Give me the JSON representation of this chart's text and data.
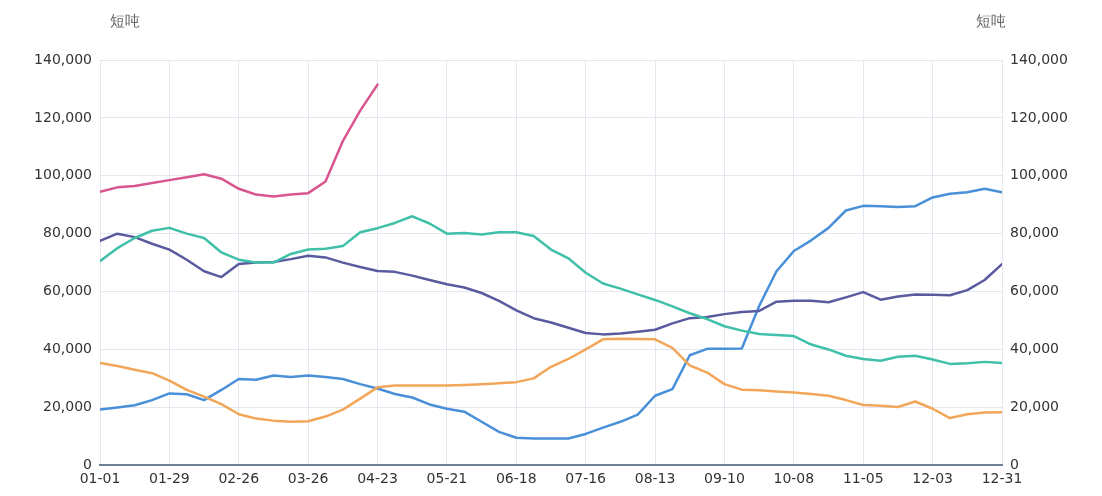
{
  "chart_data": {
    "type": "line",
    "ylabel": "短吨",
    "y2label": "短吨",
    "x": [
      "--01-01",
      "--01-08",
      "--01-15",
      "--01-22",
      "--01-29",
      "--02-05",
      "--02-12",
      "--02-19",
      "--02-26",
      "--03-05",
      "--03-12",
      "--03-19",
      "--03-26",
      "--04-02",
      "--04-09",
      "--04-16",
      "--04-23",
      "--04-30",
      "--05-07",
      "--05-14",
      "--05-21",
      "--05-28",
      "--06-04",
      "--06-11",
      "--06-18",
      "--06-25",
      "--07-02",
      "--07-09",
      "--07-16",
      "--07-23",
      "--07-30",
      "--08-06",
      "--08-13",
      "--08-20",
      "--08-27",
      "--09-03",
      "--09-10",
      "--09-17",
      "--09-24",
      "--10-01",
      "--10-08",
      "--10-15",
      "--10-22",
      "--10-29",
      "--11-05",
      "--11-12",
      "--11-19",
      "--11-26",
      "--12-03",
      "--12-10",
      "--12-17",
      "--12-24",
      "--12-31"
    ],
    "xlim": [
      "--01-01",
      "--12-31"
    ],
    "xticks": [
      {
        "value": "--01-01",
        "label": "01-01"
      },
      {
        "value": "--01-29",
        "label": "01-29"
      },
      {
        "value": "--02-26",
        "label": "02-26"
      },
      {
        "value": "--03-26",
        "label": "03-26"
      },
      {
        "value": "--04-23",
        "label": "04-23"
      },
      {
        "value": "--05-21",
        "label": "05-21"
      },
      {
        "value": "--06-18",
        "label": "06-18"
      },
      {
        "value": "--07-16",
        "label": "07-16"
      },
      {
        "value": "--08-13",
        "label": "08-13"
      },
      {
        "value": "--09-10",
        "label": "09-10"
      },
      {
        "value": "--10-08",
        "label": "10-08"
      },
      {
        "value": "--11-05",
        "label": "11-05"
      },
      {
        "value": "--12-03",
        "label": "12-03"
      },
      {
        "value": "--12-31",
        "label": "12-31"
      }
    ],
    "ylim": [
      0,
      140000
    ],
    "yticks": [
      0,
      {
        "value": 20000,
        "label": "20,000"
      },
      {
        "value": 40000,
        "label": "40,000"
      },
      {
        "value": 60000,
        "label": "60,000"
      },
      {
        "value": 80000,
        "label": "80,000"
      },
      {
        "value": 100000,
        "label": "100,000"
      },
      {
        "value": 120000,
        "label": "120,000"
      },
      {
        "value": 140000,
        "label": "140,000"
      }
    ],
    "y2lim": [
      0,
      140000
    ],
    "y2ticks": [
      0,
      {
        "value": 20000,
        "label": "20,000"
      },
      {
        "value": 40000,
        "label": "40,000"
      },
      {
        "value": 60000,
        "label": "60,000"
      },
      {
        "value": 80000,
        "label": "80,000"
      },
      {
        "value": 100000,
        "label": "100,000"
      },
      {
        "value": 120000,
        "label": "120,000"
      },
      {
        "value": 140000,
        "label": "140,000"
      }
    ],
    "grid": true,
    "legend": false,
    "marker": "none",
    "line_style": "solid",
    "series": [
      {
        "color": "#d9558f",
        "x": [
          "--01-01",
          "--01-08",
          "--01-15",
          "--01-22",
          "--01-29",
          "--02-05",
          "--02-12",
          "--02-19",
          "--02-26",
          "--03-05",
          "--03-12",
          "--03-19",
          "--03-26",
          "--04-02",
          "--04-09",
          "--04-16",
          "--04-23"
        ],
        "values": [
          94500,
          96000,
          96500,
          97500,
          98500,
          99500,
          100500,
          99000,
          95500,
          93500,
          92800,
          93500,
          94000,
          98000,
          112000,
          122500,
          131500
        ]
      },
      {
        "color": "#40c0a8",
        "values": [
          70500,
          75000,
          78500,
          81000,
          82000,
          80000,
          78500,
          73500,
          71000,
          70000,
          70000,
          73000,
          74500,
          74800,
          75700,
          80500,
          81900,
          83700,
          86000,
          83500,
          80000,
          80200,
          79700,
          80500,
          80500,
          79200,
          74500,
          71500,
          66500,
          62800,
          61000,
          59000,
          57100,
          54900,
          52500,
          50500,
          48000,
          46500,
          45300,
          45000,
          44600,
          41700,
          40000,
          37800,
          36700,
          36100,
          37500,
          37800,
          36500,
          35000,
          35200,
          35700,
          35300
        ]
      },
      {
        "color": "#5a5b9f",
        "values": [
          77500,
          80000,
          78800,
          76500,
          74500,
          71000,
          67000,
          65000,
          69500,
          70000,
          70200,
          71200,
          72400,
          71800,
          70000,
          68500,
          67100,
          66800,
          65500,
          64000,
          62500,
          61400,
          59500,
          56800,
          53500,
          50800,
          49300,
          47500,
          45700,
          45200,
          45500,
          46100,
          46800,
          49000,
          50800,
          51200,
          52200,
          52900,
          53300,
          56500,
          56800,
          56800,
          56300,
          58000,
          59800,
          57200,
          58300,
          59000,
          58900,
          58700,
          60500,
          64000,
          69500
        ]
      },
      {
        "color": "#f2a65a",
        "values": [
          35300,
          34300,
          33000,
          31800,
          29200,
          26000,
          23700,
          21100,
          17600,
          16100,
          15400,
          15000,
          15200,
          16800,
          19200,
          23000,
          26900,
          27500,
          27500,
          27500,
          27500,
          27700,
          28000,
          28300,
          28700,
          30000,
          34000,
          36700,
          40000,
          43500,
          43700,
          43600,
          43500,
          40500,
          34500,
          32000,
          28000,
          26100,
          25900,
          25500,
          25100,
          24600,
          24000,
          22500,
          20800,
          20500,
          20100,
          22000,
          19500,
          16300,
          17600,
          18200,
          18300
        ]
      },
      {
        "color": "#4a90d9",
        "values": [
          19200,
          19900,
          20700,
          22500,
          24800,
          24500,
          22500,
          26000,
          29800,
          29500,
          31000,
          30500,
          31000,
          30500,
          29800,
          28000,
          26500,
          24600,
          23400,
          21000,
          19500,
          18500,
          15000,
          11500,
          9500,
          9200,
          9200,
          9200,
          10800,
          13000,
          15000,
          17500,
          24000,
          26300,
          38000,
          40200,
          40200,
          40300,
          55000,
          67000,
          74000,
          77700,
          82000,
          88000,
          89600,
          89500,
          89200,
          89500,
          92500,
          93800,
          94300,
          95500,
          94300
        ]
      }
    ]
  }
}
